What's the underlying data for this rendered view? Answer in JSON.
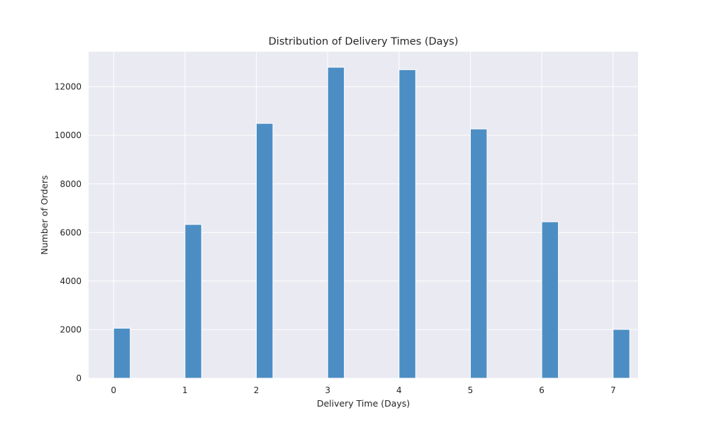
{
  "chart_data": {
    "type": "bar",
    "title": "Distribution of Delivery Times (Days)",
    "xlabel": "Delivery Time (Days)",
    "ylabel": "Number of Orders",
    "categories": [
      0,
      1,
      2,
      3,
      4,
      5,
      6,
      7
    ],
    "values": [
      2060,
      6330,
      10490,
      12800,
      12700,
      10260,
      6440,
      2010
    ],
    "x_ticks": [
      "0",
      "1",
      "2",
      "3",
      "4",
      "5",
      "6",
      "7"
    ],
    "y_ticks": [
      0,
      2000,
      4000,
      6000,
      8000,
      10000,
      12000
    ],
    "xlim": [
      -0.35,
      7.35
    ],
    "ylim": [
      0,
      13440
    ],
    "bar_width_days": 0.233,
    "grid": true,
    "colors": {
      "bar": "#4c8ec3",
      "plot_background": "#eaeaf2",
      "grid": "#ffffff",
      "text": "#262626"
    }
  }
}
